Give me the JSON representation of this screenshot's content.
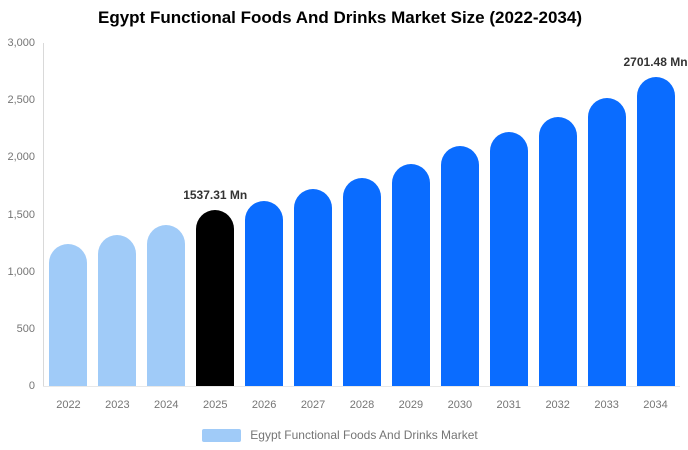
{
  "title": "Egypt Functional Foods And Drinks Market Size (2022-2034)",
  "legend": {
    "label": "Egypt Functional Foods And Drinks Market",
    "swatch_color": "#A0CBF8"
  },
  "chart_data": {
    "type": "bar",
    "title": "Egypt Functional Foods And Drinks Market Size (2022-2034)",
    "categories": [
      "2022",
      "2023",
      "2024",
      "2025",
      "2026",
      "2027",
      "2028",
      "2029",
      "2030",
      "2031",
      "2032",
      "2033",
      "2034"
    ],
    "values": [
      1245,
      1325,
      1410,
      1537.31,
      1615,
      1720,
      1820,
      1940,
      2095,
      2220,
      2350,
      2520,
      2701.48
    ],
    "unit": "Mn",
    "xlabel": "",
    "ylabel": "",
    "ylim": [
      0,
      3000
    ],
    "ytick_values": [
      3000,
      2500,
      2000,
      1500,
      1000,
      500,
      0
    ],
    "ytick_labels": [
      "3,000",
      "2,500",
      "2,000",
      "1,500",
      "1,000",
      "500",
      "0"
    ],
    "grid": false,
    "legend_position": "bottom",
    "bar_colors": [
      "#A0CBF8",
      "#A0CBF8",
      "#A0CBF8",
      "#000000",
      "#0A6CFF",
      "#0A6CFF",
      "#0A6CFF",
      "#0A6CFF",
      "#0A6CFF",
      "#0A6CFF",
      "#0A6CFF",
      "#0A6CFF",
      "#0A6CFF"
    ],
    "colors": {
      "historical": "#A0CBF8",
      "highlight": "#000000",
      "forecast": "#0A6CFF",
      "axis_text": "#757575",
      "annotation_text": "#333333",
      "axis_line": "#D9D9D9"
    },
    "annotations": [
      {
        "category": "2025",
        "text": "1537.31 Mn"
      },
      {
        "category": "2034",
        "text": "2701.48 Mn"
      }
    ]
  }
}
